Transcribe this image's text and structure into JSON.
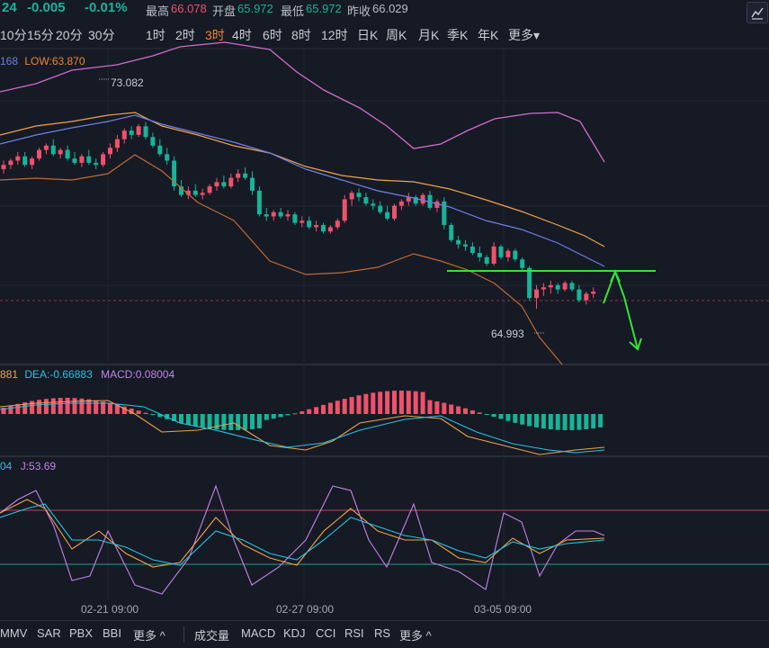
{
  "header": {
    "price_partial": "24",
    "change": "-0.005",
    "change_pct": "-0.01%",
    "high_label": "最高",
    "high": "66.078",
    "open_label": "开盘",
    "open": "65.972",
    "low_label": "最低",
    "low": "65.972",
    "prev_close_label": "昨收",
    "prev_close": "66.029"
  },
  "intervals": [
    "10分",
    "15分",
    "20分",
    "30分",
    "1时",
    "2时",
    "3时",
    "4时",
    "6时",
    "8时",
    "12时",
    "日K",
    "周K",
    "月K",
    "季K",
    "年K",
    "更多▾"
  ],
  "active_interval": "3时",
  "main_legend": {
    "prefix": "168",
    "low": "LOW:63.870"
  },
  "price_annotations": {
    "high_mark": "73.082",
    "low_mark": "64.993"
  },
  "macd_legend": {
    "prefix": "881",
    "dea": "DEA:-0.66883",
    "macd": "MACD:0.08004"
  },
  "kdj_legend": {
    "prefix": "04",
    "j": "J:53.69"
  },
  "date_labels": [
    "02-21 09:00",
    "02-27 09:00",
    "03-05 09:00"
  ],
  "bottom_indicators_main": [
    "MMV",
    "SAR",
    "PBX",
    "BBI",
    "更多 ^"
  ],
  "bottom_indicators_sub": [
    "成交量",
    "MACD",
    "KDJ",
    "CCI",
    "RSI",
    "RS",
    "更多 ^"
  ],
  "colors": {
    "up": "#f0516b",
    "down": "#16b49a",
    "active": "#f0842c",
    "boll_upper": "#d06ccc",
    "boll_mid": "#f0a24a",
    "boll_lower": "#c06a33",
    "ma_blue": "#6f7fe6",
    "annotation": "#35e337"
  },
  "chart_data": {
    "type": "candlestick",
    "price_candles": [
      {
        "o": 67.0,
        "h": 67.4,
        "l": 66.8,
        "c": 67.2
      },
      {
        "o": 67.2,
        "h": 67.5,
        "l": 67.0,
        "c": 67.4
      },
      {
        "o": 67.4,
        "h": 67.8,
        "l": 67.2,
        "c": 67.6
      },
      {
        "o": 67.6,
        "h": 67.8,
        "l": 67.1,
        "c": 67.2
      },
      {
        "o": 67.2,
        "h": 67.6,
        "l": 67.0,
        "c": 67.5
      },
      {
        "o": 67.5,
        "h": 68.0,
        "l": 67.4,
        "c": 67.9
      },
      {
        "o": 67.9,
        "h": 68.2,
        "l": 67.7,
        "c": 68.1
      },
      {
        "o": 68.1,
        "h": 68.4,
        "l": 67.6,
        "c": 67.7
      },
      {
        "o": 67.7,
        "h": 68.0,
        "l": 67.5,
        "c": 67.9
      },
      {
        "o": 67.9,
        "h": 68.1,
        "l": 67.4,
        "c": 67.5
      },
      {
        "o": 67.5,
        "h": 67.8,
        "l": 67.2,
        "c": 67.3
      },
      {
        "o": 67.3,
        "h": 67.7,
        "l": 67.1,
        "c": 67.6
      },
      {
        "o": 67.6,
        "h": 67.9,
        "l": 67.2,
        "c": 67.3
      },
      {
        "o": 67.3,
        "h": 67.5,
        "l": 67.0,
        "c": 67.2
      },
      {
        "o": 67.2,
        "h": 67.8,
        "l": 67.1,
        "c": 67.7
      },
      {
        "o": 67.7,
        "h": 68.2,
        "l": 67.5,
        "c": 68.0
      },
      {
        "o": 68.0,
        "h": 68.6,
        "l": 67.8,
        "c": 68.4
      },
      {
        "o": 68.4,
        "h": 68.9,
        "l": 68.2,
        "c": 68.8
      },
      {
        "o": 68.8,
        "h": 69.0,
        "l": 68.4,
        "c": 68.6
      },
      {
        "o": 68.6,
        "h": 69.1,
        "l": 68.5,
        "c": 69.0
      },
      {
        "o": 69.0,
        "h": 69.2,
        "l": 68.4,
        "c": 68.5
      },
      {
        "o": 68.5,
        "h": 68.7,
        "l": 68.0,
        "c": 68.1
      },
      {
        "o": 68.1,
        "h": 68.4,
        "l": 67.6,
        "c": 67.7
      },
      {
        "o": 67.7,
        "h": 68.0,
        "l": 67.2,
        "c": 67.4
      },
      {
        "o": 67.4,
        "h": 67.6,
        "l": 66.0,
        "c": 66.2
      },
      {
        "o": 66.2,
        "h": 66.5,
        "l": 65.7,
        "c": 65.8
      },
      {
        "o": 65.8,
        "h": 66.2,
        "l": 65.6,
        "c": 66.0
      },
      {
        "o": 66.0,
        "h": 66.3,
        "l": 65.7,
        "c": 65.8
      },
      {
        "o": 65.8,
        "h": 66.1,
        "l": 65.6,
        "c": 65.9
      },
      {
        "o": 65.9,
        "h": 66.3,
        "l": 65.8,
        "c": 66.2
      },
      {
        "o": 66.2,
        "h": 66.6,
        "l": 66.0,
        "c": 66.4
      },
      {
        "o": 66.4,
        "h": 66.7,
        "l": 66.1,
        "c": 66.2
      },
      {
        "o": 66.2,
        "h": 66.8,
        "l": 66.1,
        "c": 66.6
      },
      {
        "o": 66.6,
        "h": 67.0,
        "l": 66.4,
        "c": 66.8
      },
      {
        "o": 66.8,
        "h": 67.1,
        "l": 66.5,
        "c": 66.6
      },
      {
        "o": 66.6,
        "h": 66.9,
        "l": 65.8,
        "c": 66.0
      },
      {
        "o": 66.0,
        "h": 66.2,
        "l": 64.8,
        "c": 64.9
      },
      {
        "o": 64.9,
        "h": 65.2,
        "l": 64.6,
        "c": 64.8
      },
      {
        "o": 64.8,
        "h": 65.1,
        "l": 64.6,
        "c": 65.0
      },
      {
        "o": 65.0,
        "h": 65.2,
        "l": 64.7,
        "c": 64.8
      },
      {
        "o": 64.8,
        "h": 65.1,
        "l": 64.6,
        "c": 64.9
      },
      {
        "o": 64.9,
        "h": 65.0,
        "l": 64.4,
        "c": 64.5
      },
      {
        "o": 64.5,
        "h": 64.8,
        "l": 64.3,
        "c": 64.6
      },
      {
        "o": 64.6,
        "h": 64.8,
        "l": 64.2,
        "c": 64.3
      },
      {
        "o": 64.3,
        "h": 64.6,
        "l": 64.1,
        "c": 64.4
      },
      {
        "o": 64.4,
        "h": 64.5,
        "l": 64.0,
        "c": 64.1
      },
      {
        "o": 64.1,
        "h": 64.4,
        "l": 64.0,
        "c": 64.3
      },
      {
        "o": 64.3,
        "h": 64.7,
        "l": 64.2,
        "c": 64.6
      },
      {
        "o": 64.6,
        "h": 65.8,
        "l": 64.5,
        "c": 65.6
      },
      {
        "o": 65.6,
        "h": 66.0,
        "l": 65.3,
        "c": 65.9
      },
      {
        "o": 65.9,
        "h": 66.1,
        "l": 65.5,
        "c": 65.7
      },
      {
        "o": 65.7,
        "h": 65.9,
        "l": 65.3,
        "c": 65.4
      },
      {
        "o": 65.4,
        "h": 65.6,
        "l": 65.1,
        "c": 65.3
      },
      {
        "o": 65.3,
        "h": 65.5,
        "l": 64.9,
        "c": 65.0
      },
      {
        "o": 65.0,
        "h": 65.3,
        "l": 64.6,
        "c": 64.7
      },
      {
        "o": 64.7,
        "h": 65.4,
        "l": 64.6,
        "c": 65.3
      },
      {
        "o": 65.3,
        "h": 65.6,
        "l": 65.1,
        "c": 65.5
      },
      {
        "o": 65.5,
        "h": 65.9,
        "l": 65.3,
        "c": 65.7
      },
      {
        "o": 65.7,
        "h": 65.8,
        "l": 65.3,
        "c": 65.4
      },
      {
        "o": 65.4,
        "h": 65.9,
        "l": 65.3,
        "c": 65.8
      },
      {
        "o": 65.8,
        "h": 66.0,
        "l": 65.1,
        "c": 65.2
      },
      {
        "o": 65.2,
        "h": 65.6,
        "l": 65.0,
        "c": 65.5
      },
      {
        "o": 65.5,
        "h": 65.7,
        "l": 64.2,
        "c": 64.4
      },
      {
        "o": 64.4,
        "h": 64.5,
        "l": 63.6,
        "c": 63.7
      },
      {
        "o": 63.7,
        "h": 63.9,
        "l": 63.3,
        "c": 63.5
      },
      {
        "o": 63.5,
        "h": 63.7,
        "l": 63.2,
        "c": 63.4
      },
      {
        "o": 63.4,
        "h": 63.6,
        "l": 63.0,
        "c": 63.1
      },
      {
        "o": 63.1,
        "h": 63.4,
        "l": 62.7,
        "c": 62.9
      },
      {
        "o": 62.9,
        "h": 63.0,
        "l": 62.5,
        "c": 62.6
      },
      {
        "o": 62.6,
        "h": 63.6,
        "l": 62.5,
        "c": 63.4
      },
      {
        "o": 63.4,
        "h": 63.5,
        "l": 62.8,
        "c": 62.9
      },
      {
        "o": 62.9,
        "h": 63.3,
        "l": 62.7,
        "c": 63.2
      },
      {
        "o": 63.2,
        "h": 63.3,
        "l": 62.7,
        "c": 62.8
      },
      {
        "o": 62.8,
        "h": 62.9,
        "l": 62.3,
        "c": 62.4
      },
      {
        "o": 62.4,
        "h": 62.5,
        "l": 60.9,
        "c": 61.0
      },
      {
        "o": 61.0,
        "h": 61.6,
        "l": 60.5,
        "c": 61.4
      },
      {
        "o": 61.4,
        "h": 61.7,
        "l": 61.1,
        "c": 61.5
      },
      {
        "o": 61.5,
        "h": 61.8,
        "l": 61.2,
        "c": 61.6
      },
      {
        "o": 61.6,
        "h": 61.7,
        "l": 61.2,
        "c": 61.4
      },
      {
        "o": 61.4,
        "h": 61.8,
        "l": 61.3,
        "c": 61.7
      },
      {
        "o": 61.7,
        "h": 61.8,
        "l": 61.3,
        "c": 61.4
      },
      {
        "o": 61.4,
        "h": 61.6,
        "l": 60.8,
        "c": 60.9
      },
      {
        "o": 60.9,
        "h": 61.3,
        "l": 60.7,
        "c": 61.2
      },
      {
        "o": 61.2,
        "h": 61.5,
        "l": 61.0,
        "c": 61.3
      }
    ],
    "horizontal_level": 61.9
  }
}
